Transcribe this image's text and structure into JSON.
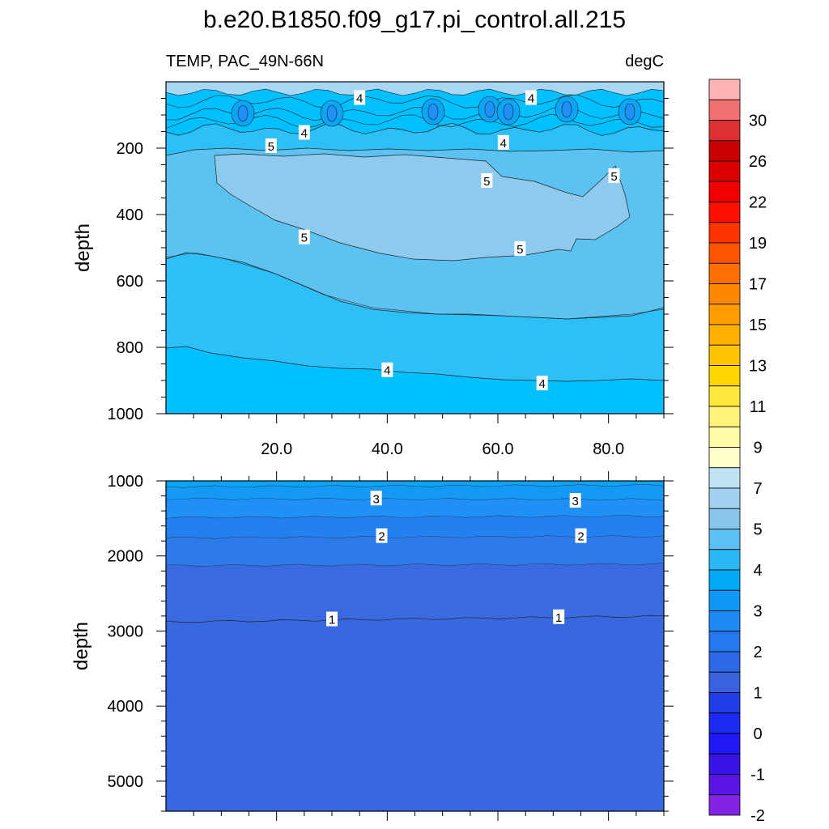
{
  "title": "b.e20.B1850.f09_g17.pi_control.all.215",
  "subtitle_left": "TEMP, PAC_49N-66N",
  "subtitle_right": "degC",
  "chart_data": [
    {
      "type": "contour",
      "panel": "upper",
      "ylabel": "depth",
      "xlabel": "",
      "xlim": [
        0,
        90
      ],
      "ylim": [
        1000,
        0
      ],
      "y_inverted": true,
      "x_ticks": [
        20.0,
        40.0,
        60.0,
        80.0
      ],
      "x_tick_labels": [
        "20.0",
        "40.0",
        "60.0",
        "80.0"
      ],
      "y_ticks": [
        200,
        400,
        600,
        800,
        1000
      ],
      "y_tick_labels": [
        "200",
        "400",
        "600",
        "800",
        "1000"
      ],
      "contour_labels": [
        {
          "text": "4",
          "x": 35,
          "depth": 50
        },
        {
          "text": "4",
          "x": 66,
          "depth": 50
        },
        {
          "text": "4",
          "x": 25,
          "depth": 155
        },
        {
          "text": "5",
          "x": 19,
          "depth": 195
        },
        {
          "text": "4",
          "x": 61,
          "depth": 185
        },
        {
          "text": "5",
          "x": 58,
          "depth": 300
        },
        {
          "text": "5",
          "x": 81,
          "depth": 285
        },
        {
          "text": "5",
          "x": 25,
          "depth": 470
        },
        {
          "text": "5",
          "x": 64,
          "depth": 505
        },
        {
          "text": "4",
          "x": 40,
          "depth": 870
        },
        {
          "text": "4",
          "x": 68,
          "depth": 910
        }
      ]
    },
    {
      "type": "contour",
      "panel": "lower",
      "ylabel": "depth",
      "xlabel": "",
      "xlim": [
        0,
        90
      ],
      "ylim": [
        5400,
        1000
      ],
      "y_inverted": true,
      "y_ticks": [
        1000,
        2000,
        3000,
        4000,
        5000
      ],
      "y_tick_labels": [
        "1000",
        "2000",
        "3000",
        "4000",
        "5000"
      ],
      "contour_labels": [
        {
          "text": "3",
          "x": 38,
          "depth": 1240
        },
        {
          "text": "3",
          "x": 74,
          "depth": 1270
        },
        {
          "text": "2",
          "x": 39,
          "depth": 1740
        },
        {
          "text": "2",
          "x": 75,
          "depth": 1740
        },
        {
          "text": "1",
          "x": 30,
          "depth": 2850
        },
        {
          "text": "1",
          "x": 71,
          "depth": 2820
        }
      ]
    }
  ],
  "colorbar": {
    "colors": [
      "#ffb3b3",
      "#f07070",
      "#dd3030",
      "#c80000",
      "#dd0000",
      "#f00000",
      "#ff1000",
      "#ff3300",
      "#ff5500",
      "#ff6e00",
      "#ff8800",
      "#ff9d00",
      "#ffb000",
      "#ffc400",
      "#ffd600",
      "#ffe83a",
      "#fff37a",
      "#fffaa6",
      "#ffffcc",
      "#bfe2f5",
      "#a3d0ef",
      "#88c6ec",
      "#5dc0f2",
      "#2ab8f5",
      "#00a8f5",
      "#0f98f5",
      "#1f88f5",
      "#2678ee",
      "#2d68e6",
      "#3a62dc",
      "#1f3ee8",
      "#1d2bf0",
      "#2018f5",
      "#3a14e6",
      "#5a14e6",
      "#8422e6"
    ],
    "labels": [
      "30",
      "26",
      "22",
      "19",
      "17",
      "15",
      "13",
      "11",
      "9",
      "7",
      "5",
      "4",
      "3",
      "2",
      "1",
      "0",
      "-1",
      "-2"
    ]
  },
  "colors": {
    "upper_bands": [
      "#00c0ff",
      "#2cbff8",
      "#5bc2f2",
      "#8ecaed",
      "#a9d7f3"
    ],
    "lower_bands": [
      "#0aa4f3",
      "#1f90f5",
      "#2c7be8",
      "#3768e0",
      "#3d6ee0"
    ]
  }
}
